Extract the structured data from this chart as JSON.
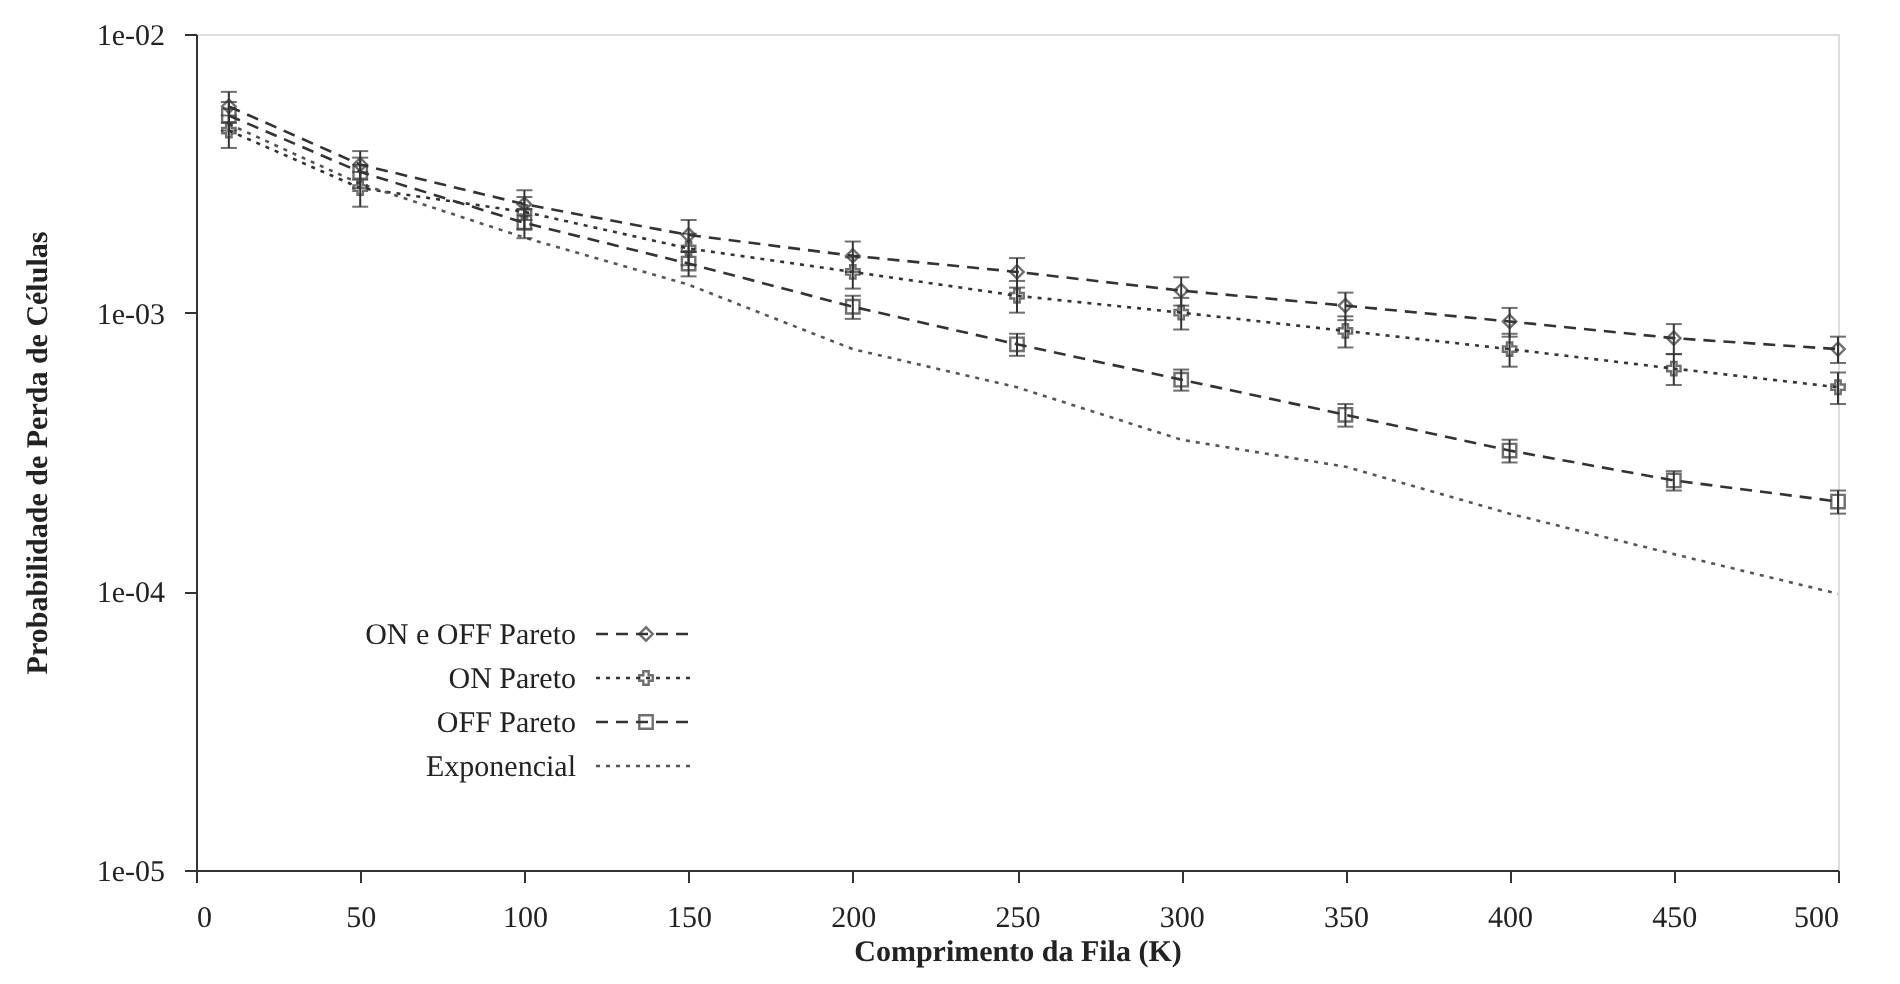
{
  "chart_data": {
    "type": "line",
    "xlabel": "Comprimento da Fila (K)",
    "ylabel": "Probabilidade de Perda de Células",
    "x": [
      10,
      50,
      100,
      150,
      200,
      250,
      300,
      350,
      400,
      450,
      500
    ],
    "series": [
      {
        "name": "ON e OFF Pareto",
        "color": "#333333",
        "marker": "diamond",
        "line_style": "dashed",
        "values": [
          0.0055,
          0.0034,
          0.00245,
          0.0019,
          0.0016,
          0.0014,
          0.0012,
          0.00106,
          0.00093,
          0.00081,
          0.00074
        ],
        "errors": [
          0.0007,
          0.0004,
          0.0003,
          0.00025,
          0.0002,
          0.00017,
          0.00014,
          0.00012,
          0.00011,
          0.0001,
          8e-05
        ]
      },
      {
        "name": "ON Pareto",
        "color": "#333333",
        "marker": "cross",
        "line_style": "dotted",
        "values": [
          0.0045,
          0.0028,
          0.0023,
          0.0017,
          0.0014,
          0.00115,
          0.001,
          0.00086,
          0.00074,
          0.00063,
          0.00054
        ],
        "errors": [
          0.0006,
          0.0004,
          0.0003,
          0.00022,
          0.00018,
          0.00015,
          0.00013,
          0.00011,
          0.0001,
          8e-05,
          7e-05
        ]
      },
      {
        "name": "OFF Pareto",
        "color": "#333333",
        "marker": "square",
        "line_style": "dashed",
        "values": [
          0.0051,
          0.0032,
          0.0021,
          0.0015,
          0.00105,
          0.00077,
          0.000575,
          0.00043,
          0.00032,
          0.00025,
          0.00021
        ],
        "errors": [
          0.0006,
          0.0004,
          0.00025,
          0.00015,
          0.0001,
          7e-05,
          5e-05,
          4e-05,
          3e-05,
          2e-05,
          2e-05
        ]
      },
      {
        "name": "Exponencial",
        "color": "#555555",
        "marker": "none",
        "line_style": "dotted",
        "values": [
          0.00475,
          0.0029,
          0.00186,
          0.00126,
          0.00074,
          0.00054,
          0.00035,
          0.00028,
          0.00019,
          0.000136,
          9.8e-05
        ]
      }
    ],
    "xlim": [
      0,
      500
    ],
    "xticks": [
      0,
      50,
      100,
      150,
      200,
      250,
      300,
      350,
      400,
      450,
      500
    ],
    "ylim": [
      1e-05,
      0.01
    ],
    "yticks": [
      {
        "value": 1e-05,
        "label": "1e-05"
      },
      {
        "value": 0.0001,
        "label": "1e-04"
      },
      {
        "value": 0.001,
        "label": "1e-03"
      },
      {
        "value": 0.01,
        "label": "1e-02"
      }
    ],
    "log": "y",
    "grid": false,
    "legend": "bottom left"
  }
}
